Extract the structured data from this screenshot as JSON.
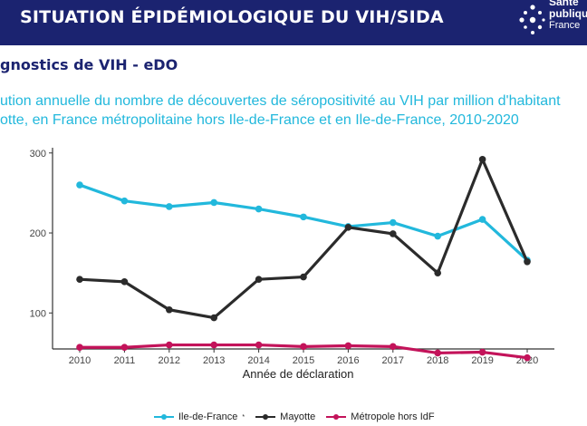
{
  "header": {
    "title": "SITUATION ÉPIDÉMIOLOGIQUE DU VIH/SIDA",
    "logo_line1": "Santé",
    "logo_line2": "publique",
    "logo_line3": "France"
  },
  "section_title": "gnostics de VIH - eDO",
  "subtitle_line1": "ution annuelle du nombre de découvertes de séropositivité au VIH par million d'habitant",
  "subtitle_line2": "otte, en France métropolitaine hors Ile-de-France et en Ile-de-France, 2010-2020",
  "colors": {
    "header_bg": "#1b2370",
    "ile_de_france": "#22b8dc",
    "mayotte": "#2b2b2b",
    "metropole_hors_idf": "#c3135a"
  },
  "chart_data": {
    "type": "line",
    "xlabel": "Année de déclaration",
    "ylabel": "",
    "x": [
      2010,
      2011,
      2012,
      2013,
      2014,
      2015,
      2016,
      2017,
      2018,
      2019,
      2020
    ],
    "ylim": [
      55,
      302
    ],
    "yticks": [
      100,
      200,
      300
    ],
    "grid": false,
    "legend_position": "bottom",
    "series": [
      {
        "name": "Ile-de-France",
        "name_suffix": "*",
        "color": "#22b8dc",
        "values": [
          260,
          240,
          233,
          238,
          230,
          220,
          208,
          213,
          196,
          217,
          166
        ]
      },
      {
        "name": "Mayotte",
        "name_suffix": "",
        "color": "#2b2b2b",
        "values": [
          142,
          139,
          104,
          94,
          142,
          145,
          207,
          199,
          150,
          292,
          164
        ]
      },
      {
        "name": "Métropole hors IdF",
        "name_suffix": "",
        "color": "#c3135a",
        "values": [
          57,
          57,
          60,
          60,
          60,
          58,
          59,
          58,
          50,
          51,
          44
        ]
      }
    ]
  }
}
